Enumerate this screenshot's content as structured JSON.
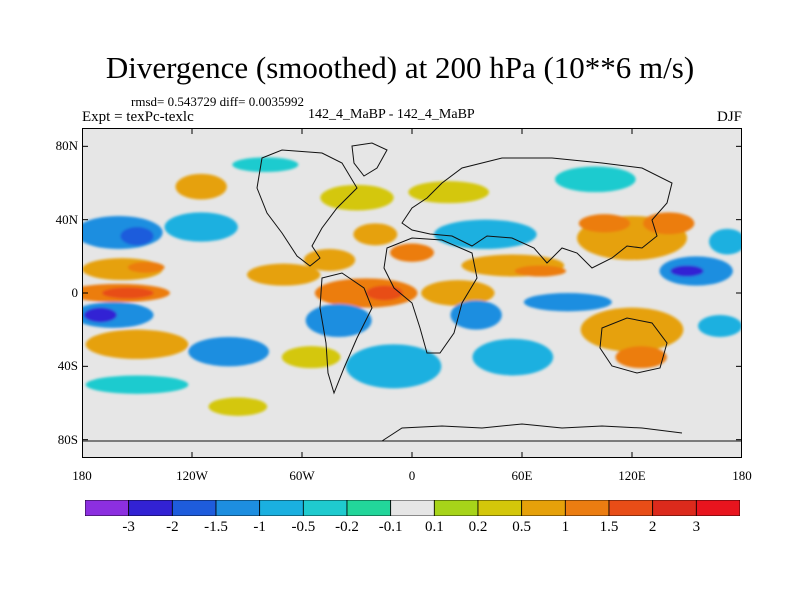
{
  "title": "Divergence (smoothed) at 200 hPa (10**6 m/s)",
  "stats": "rmsd= 0.543729  diff= 0.0035992",
  "expt_label": "Expt = texPc-texlc",
  "case_label": "142_4_MaBP - 142_4_MaBP",
  "season": "DJF",
  "map": {
    "projection": "cylindrical-equidistant",
    "lon_range": [
      -180,
      180
    ],
    "lat_range": [
      -90,
      90
    ],
    "y_ticks": [
      {
        "lat": 80,
        "label": "80N"
      },
      {
        "lat": 40,
        "label": "40N"
      },
      {
        "lat": 0,
        "label": "0"
      },
      {
        "lat": -40,
        "label": "40S"
      },
      {
        "lat": -80,
        "label": "80S"
      }
    ],
    "x_ticks": [
      {
        "lon": -180,
        "label": "180"
      },
      {
        "lon": -120,
        "label": "120W"
      },
      {
        "lon": -60,
        "label": "60W"
      },
      {
        "lon": 0,
        "label": "0"
      },
      {
        "lon": 60,
        "label": "60E"
      },
      {
        "lon": 120,
        "label": "120E"
      },
      {
        "lon": 180,
        "label": "180"
      }
    ],
    "background_color": "#e6e6e6",
    "features": [
      {
        "lon": -160,
        "lat": 33,
        "rx": 24,
        "ry": 9,
        "level": "-1"
      },
      {
        "lon": -150,
        "lat": 31,
        "rx": 9,
        "ry": 5,
        "level": "-1.5"
      },
      {
        "lon": -115,
        "lat": 36,
        "rx": 20,
        "ry": 8,
        "level": "-0.5"
      },
      {
        "lon": -115,
        "lat": 58,
        "rx": 14,
        "ry": 7,
        "level": "0.5"
      },
      {
        "lon": -158,
        "lat": 13,
        "rx": 22,
        "ry": 6,
        "level": "0.5"
      },
      {
        "lon": -145,
        "lat": 14,
        "rx": 10,
        "ry": 3,
        "level": "1"
      },
      {
        "lon": -160,
        "lat": 0,
        "rx": 28,
        "ry": 5,
        "level": "1"
      },
      {
        "lon": -155,
        "lat": 0,
        "rx": 14,
        "ry": 3,
        "level": "1.5"
      },
      {
        "lon": -163,
        "lat": -12,
        "rx": 22,
        "ry": 7,
        "level": "-1"
      },
      {
        "lon": -170,
        "lat": -12,
        "rx": 9,
        "ry": 4,
        "level": "-2"
      },
      {
        "lon": -150,
        "lat": -28,
        "rx": 28,
        "ry": 8,
        "level": "0.5"
      },
      {
        "lon": -150,
        "lat": -50,
        "rx": 28,
        "ry": 5,
        "level": "-0.2"
      },
      {
        "lon": -100,
        "lat": -32,
        "rx": 22,
        "ry": 8,
        "level": "-1"
      },
      {
        "lon": -95,
        "lat": -62,
        "rx": 16,
        "ry": 5,
        "level": "0.2"
      },
      {
        "lon": -70,
        "lat": 10,
        "rx": 20,
        "ry": 6,
        "level": "0.5"
      },
      {
        "lon": -45,
        "lat": 18,
        "rx": 14,
        "ry": 6,
        "level": "0.5"
      },
      {
        "lon": -25,
        "lat": 0,
        "rx": 28,
        "ry": 8,
        "level": "1"
      },
      {
        "lon": -15,
        "lat": 0,
        "rx": 10,
        "ry": 4,
        "level": "1.5"
      },
      {
        "lon": -40,
        "lat": -15,
        "rx": 18,
        "ry": 9,
        "level": "-1"
      },
      {
        "lon": -55,
        "lat": -35,
        "rx": 16,
        "ry": 6,
        "level": "0.2"
      },
      {
        "lon": -20,
        "lat": 32,
        "rx": 12,
        "ry": 6,
        "level": "0.5"
      },
      {
        "lon": 0,
        "lat": 22,
        "rx": 12,
        "ry": 5,
        "level": "1"
      },
      {
        "lon": -10,
        "lat": -40,
        "rx": 26,
        "ry": 12,
        "level": "-0.5"
      },
      {
        "lon": 25,
        "lat": 0,
        "rx": 20,
        "ry": 7,
        "level": "0.5"
      },
      {
        "lon": 35,
        "lat": -12,
        "rx": 14,
        "ry": 8,
        "level": "-1"
      },
      {
        "lon": 55,
        "lat": 15,
        "rx": 28,
        "ry": 6,
        "level": "0.5"
      },
      {
        "lon": 70,
        "lat": 12,
        "rx": 14,
        "ry": 3,
        "level": "1"
      },
      {
        "lon": 55,
        "lat": -35,
        "rx": 22,
        "ry": 10,
        "level": "-0.5"
      },
      {
        "lon": 85,
        "lat": -5,
        "rx": 24,
        "ry": 5,
        "level": "-1"
      },
      {
        "lon": 120,
        "lat": -20,
        "rx": 28,
        "ry": 12,
        "level": "0.5"
      },
      {
        "lon": 125,
        "lat": -35,
        "rx": 14,
        "ry": 6,
        "level": "1"
      },
      {
        "lon": 120,
        "lat": 30,
        "rx": 30,
        "ry": 12,
        "level": "0.5"
      },
      {
        "lon": 105,
        "lat": 38,
        "rx": 14,
        "ry": 5,
        "level": "1"
      },
      {
        "lon": 140,
        "lat": 38,
        "rx": 14,
        "ry": 6,
        "level": "1"
      },
      {
        "lon": 155,
        "lat": 12,
        "rx": 20,
        "ry": 8,
        "level": "-1"
      },
      {
        "lon": 150,
        "lat": 12,
        "rx": 9,
        "ry": 3,
        "level": "-2"
      },
      {
        "lon": 100,
        "lat": 62,
        "rx": 22,
        "ry": 7,
        "level": "-0.2"
      },
      {
        "lon": 20,
        "lat": 55,
        "rx": 22,
        "ry": 6,
        "level": "0.2"
      },
      {
        "lon": 40,
        "lat": 32,
        "rx": 28,
        "ry": 8,
        "level": "-0.5"
      },
      {
        "lon": -30,
        "lat": 52,
        "rx": 20,
        "ry": 7,
        "level": "0.2"
      },
      {
        "lon": -80,
        "lat": 70,
        "rx": 18,
        "ry": 4,
        "level": "-0.2"
      },
      {
        "lon": 168,
        "lat": -18,
        "rx": 12,
        "ry": 6,
        "level": "-0.5"
      },
      {
        "lon": 172,
        "lat": 28,
        "rx": 10,
        "ry": 7,
        "level": "-0.5"
      }
    ]
  },
  "colorbar": {
    "labels": [
      "-3",
      "-2",
      "-1.5",
      "-1",
      "-0.5",
      "-0.2",
      "-0.1",
      "0.1",
      "0.2",
      "0.5",
      "1",
      "1.5",
      "2",
      "3"
    ],
    "colors": [
      "#8c2fe0",
      "#3222d4",
      "#1e5cdc",
      "#1d8ee0",
      "#1ab0e0",
      "#1fcbcf",
      "#22d69a",
      "#e6e6e6",
      "#a7d419",
      "#d4c70a",
      "#e6a10a",
      "#ec7d11",
      "#e84d17",
      "#dc2a1c",
      "#e8141e"
    ]
  }
}
